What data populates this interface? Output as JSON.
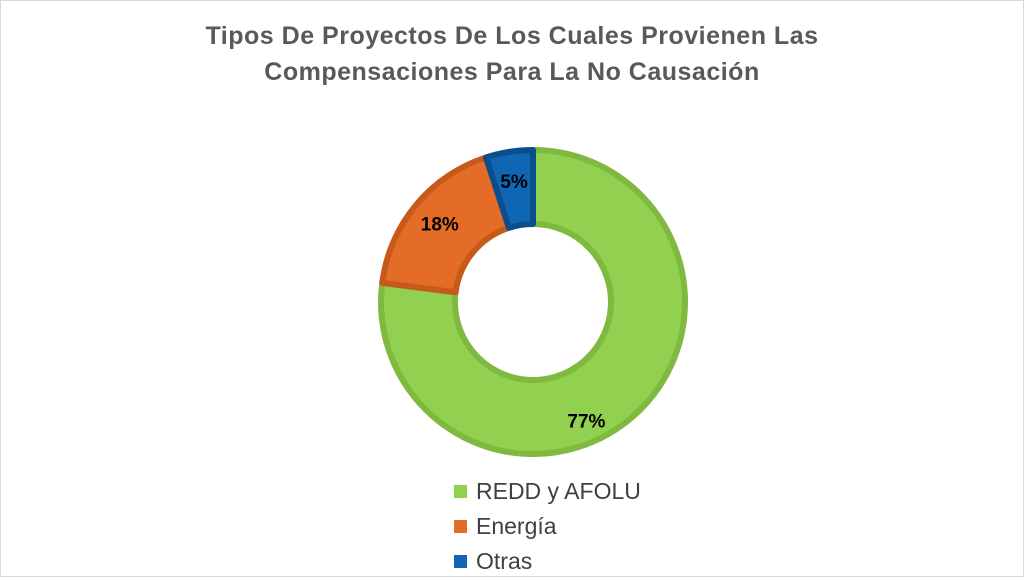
{
  "chart_data": {
    "type": "pie",
    "variant": "doughnut",
    "title_lines": [
      "Tipos De Proyectos De Los Cuales Provienen Las",
      "Compensaciones Para La No Causación"
    ],
    "series": [
      {
        "name": "REDD y AFOLU",
        "value": 77,
        "label": "77%",
        "color": "#92d050",
        "edge": "#7fb93f"
      },
      {
        "name": "Energía",
        "value": 18,
        "label": "18%",
        "color": "#e46c27",
        "edge": "#c55a1b"
      },
      {
        "name": "Otras",
        "value": 5,
        "label": "5%",
        "color": "#0f66b3",
        "edge": "#0a4f8c"
      }
    ],
    "start_angle_deg": 0,
    "direction": "clockwise",
    "legend_position": "bottom"
  }
}
